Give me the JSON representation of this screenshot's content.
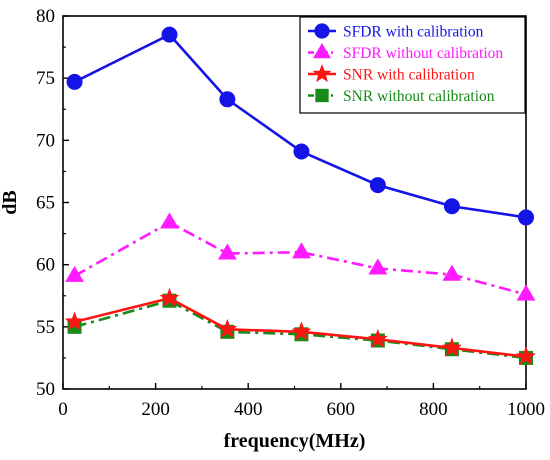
{
  "chart_data": {
    "type": "line",
    "xlabel": "frequency(MHz)",
    "ylabel": "dB",
    "xlim": [
      0,
      1000
    ],
    "ylim": [
      50,
      80
    ],
    "x_ticks": [
      0,
      200,
      400,
      600,
      800,
      1000
    ],
    "y_ticks": [
      50,
      55,
      60,
      65,
      70,
      75,
      80
    ],
    "x": [
      25,
      230,
      355,
      515,
      680,
      840,
      1000
    ],
    "grid": false,
    "legend_position": "top-right",
    "series": [
      {
        "name": "SFDR with calibration",
        "values": [
          74.7,
          78.5,
          73.3,
          69.1,
          66.4,
          64.7,
          63.8
        ],
        "color": "#1414e6",
        "marker": "circle",
        "dash": "solid"
      },
      {
        "name": "SFDR without calibration",
        "values": [
          59.1,
          63.4,
          60.9,
          61.0,
          59.7,
          59.2,
          57.6
        ],
        "color": "#ff1aff",
        "marker": "triangle",
        "dash": "dashdot"
      },
      {
        "name": "SNR with calibration",
        "values": [
          55.4,
          57.3,
          54.8,
          54.6,
          54.0,
          53.3,
          52.6
        ],
        "color": "#ff1414",
        "marker": "star",
        "dash": "solid"
      },
      {
        "name": "SNR without calibration",
        "values": [
          55.0,
          57.1,
          54.6,
          54.4,
          53.9,
          53.2,
          52.5
        ],
        "color": "#188a18",
        "marker": "square",
        "dash": "dashdot"
      }
    ]
  }
}
